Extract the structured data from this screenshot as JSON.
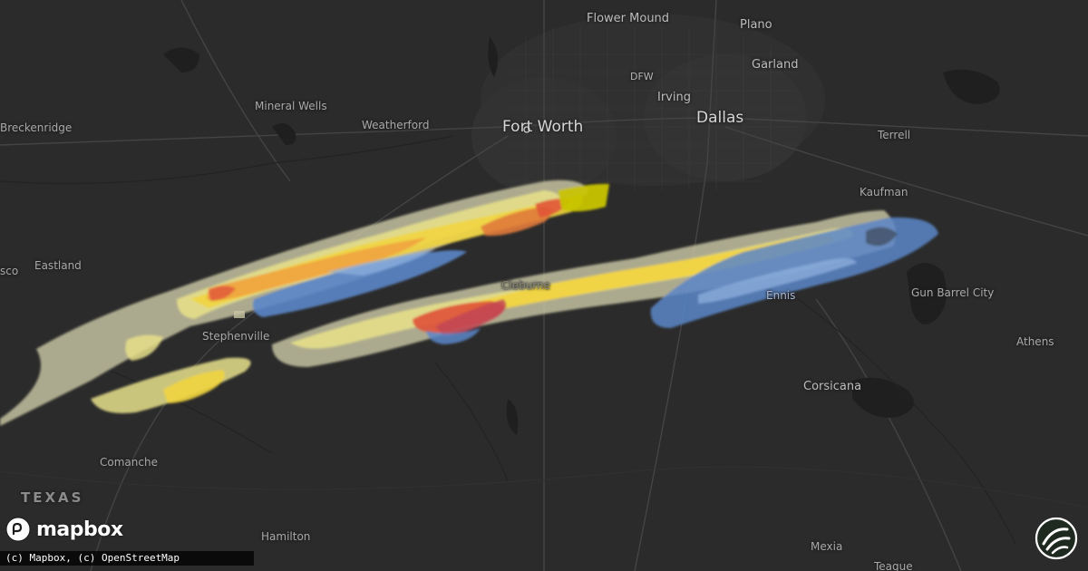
{
  "map": {
    "state_label": "TEXAS",
    "places": {
      "flower_mound": "Flower Mound",
      "plano": "Plano",
      "garland": "Garland",
      "dfw": "DFW",
      "irving": "Irving",
      "fort_worth": "Fort Worth",
      "dallas": "Dallas",
      "terrell": "Terrell",
      "kaufman": "Kaufman",
      "mineral_wells": "Mineral Wells",
      "weatherford": "Weatherford",
      "breckenridge": "Breckenridge",
      "eastland": "Eastland",
      "cisco": "sco",
      "stephenville": "Stephenville",
      "cleburne": "Cleburne",
      "ennis": "Ennis",
      "gun_barrel_city": "Gun Barrel City",
      "athens": "Athens",
      "corsicana": "Corsicana",
      "comanche": "Comanche",
      "hamilton": "Hamilton",
      "mexia": "Mexia",
      "teague": "Teague"
    },
    "swath_colors": {
      "outer": "#c9c6a4",
      "light_yellow": "#e9e08a",
      "yellow": "#f1d43f",
      "orange": "#f0a040",
      "red": "#e0553a",
      "blue": "#5b86c8",
      "olive": "#c8c400"
    }
  },
  "mapbox": {
    "logo_text": "mapbox",
    "attribution": "(c) Mapbox, (c) OpenStreetMap"
  },
  "icons": {
    "mapbox_logo": "mapbox-logo-icon",
    "brand_badge": "wind-swirl-logo-icon"
  }
}
